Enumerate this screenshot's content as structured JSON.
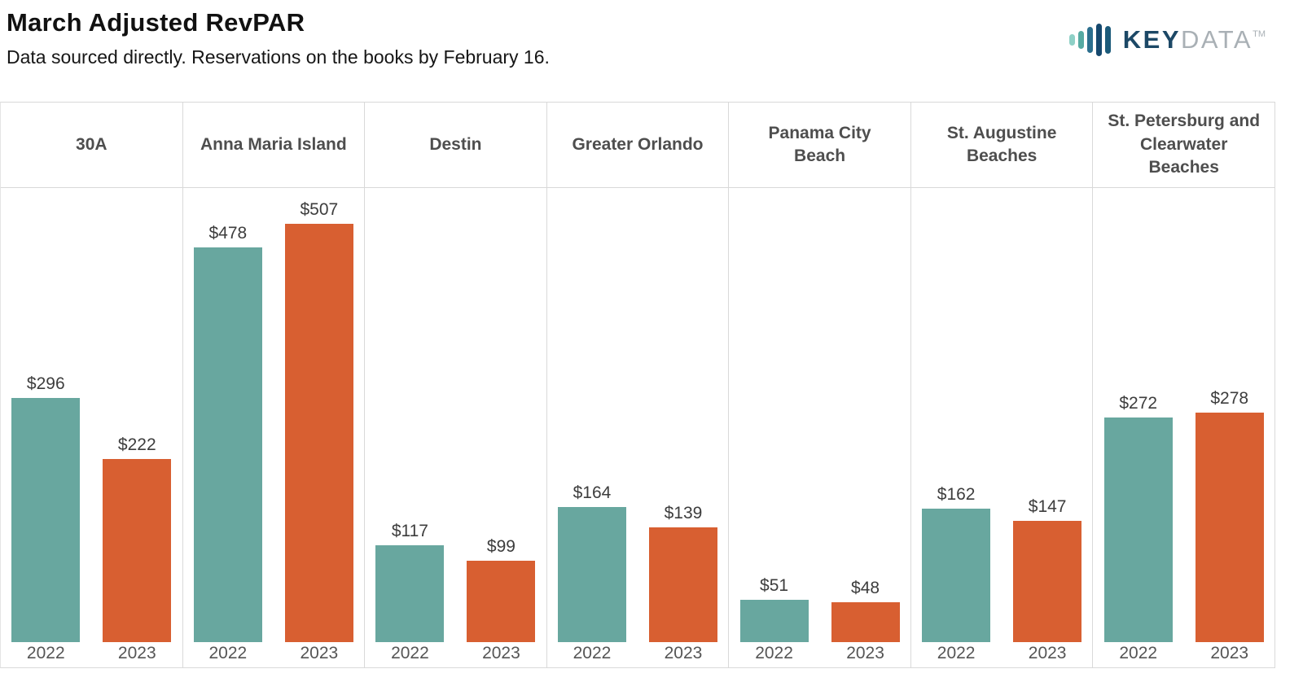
{
  "header": {
    "title": "March Adjusted RevPAR",
    "subtitle": "Data sourced directly. Reservations on the books by February 16."
  },
  "logo": {
    "text_primary": "KEY",
    "text_secondary": "DATA",
    "trademark": "TM",
    "color_primary": "#1c4866",
    "color_secondary": "#a9b0b5",
    "bar_colors": [
      "#8ed0c6",
      "#56aaa2",
      "#2c6f8e",
      "#16486e",
      "#1b5a7a"
    ]
  },
  "chart_data": {
    "type": "bar",
    "title": "March Adjusted RevPAR",
    "categories": [
      "30A",
      "Anna Maria Island",
      "Destin",
      "Greater Orlando",
      "Panama City Beach",
      "St. Augustine Beaches",
      "St. Petersburg and Clearwater Beaches"
    ],
    "series": [
      {
        "name": "2022",
        "color": "#68a79f",
        "values": [
          296,
          478,
          117,
          164,
          51,
          162,
          272
        ]
      },
      {
        "name": "2023",
        "color": "#d85f31",
        "values": [
          222,
          507,
          99,
          139,
          48,
          147,
          278
        ]
      }
    ],
    "value_prefix": "$",
    "xlabel": "",
    "ylabel": "",
    "ylim": [
      0,
      550
    ],
    "grid": "panel-dividers-only",
    "legend": "none"
  }
}
